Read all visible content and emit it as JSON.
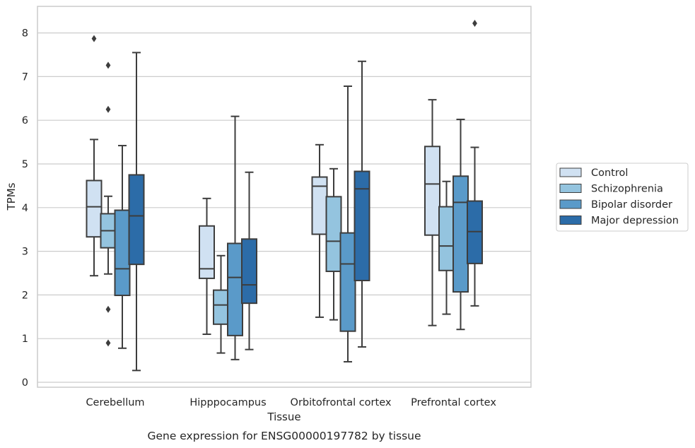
{
  "chart_data": {
    "type": "box",
    "caption": "Gene expression for ENSG00000197782 by tissue",
    "xlabel": "Tissue",
    "ylabel": "TPMs",
    "ylim": [
      -0.1,
      8.6
    ],
    "yticks": [
      0,
      1,
      2,
      3,
      4,
      5,
      6,
      7,
      8
    ],
    "grid": "horizontal",
    "legend_position": "right",
    "categories": [
      "Cerebellum",
      "Hipppocampus",
      "Orbitofrontal cortex",
      "Prefrontal cortex"
    ],
    "series": [
      {
        "name": "Control",
        "color": "#d0e1f2",
        "boxes": [
          {
            "whislo": 2.44,
            "q1": 3.33,
            "med": 4.02,
            "q3": 4.62,
            "whishi": 5.56,
            "fliers": [
              7.87
            ]
          },
          {
            "whislo": 1.1,
            "q1": 2.38,
            "med": 2.6,
            "q3": 3.58,
            "whishi": 4.21,
            "fliers": []
          },
          {
            "whislo": 1.49,
            "q1": 3.39,
            "med": 4.49,
            "q3": 4.7,
            "whishi": 5.44,
            "fliers": []
          },
          {
            "whislo": 1.3,
            "q1": 3.37,
            "med": 4.54,
            "q3": 5.4,
            "whishi": 6.47,
            "fliers": []
          }
        ]
      },
      {
        "name": "Schizophrenia",
        "color": "#94c4df",
        "boxes": [
          {
            "whislo": 2.48,
            "q1": 3.08,
            "med": 3.47,
            "q3": 3.86,
            "whishi": 4.26,
            "fliers": [
              7.26,
              6.25,
              1.67,
              0.9
            ]
          },
          {
            "whislo": 0.67,
            "q1": 1.33,
            "med": 1.77,
            "q3": 2.11,
            "whishi": 2.9,
            "fliers": []
          },
          {
            "whislo": 1.43,
            "q1": 2.54,
            "med": 3.23,
            "q3": 4.25,
            "whishi": 4.89,
            "fliers": []
          },
          {
            "whislo": 1.56,
            "q1": 2.56,
            "med": 3.12,
            "q3": 4.02,
            "whishi": 4.6,
            "fliers": []
          }
        ]
      },
      {
        "name": "Bipolar disorder",
        "color": "#5a9ac9",
        "boxes": [
          {
            "whislo": 0.78,
            "q1": 1.99,
            "med": 2.6,
            "q3": 3.94,
            "whishi": 5.42,
            "fliers": []
          },
          {
            "whislo": 0.52,
            "q1": 1.07,
            "med": 2.4,
            "q3": 3.18,
            "whishi": 6.09,
            "fliers": []
          },
          {
            "whislo": 0.47,
            "q1": 1.17,
            "med": 2.71,
            "q3": 3.42,
            "whishi": 6.78,
            "fliers": []
          },
          {
            "whislo": 1.21,
            "q1": 2.07,
            "med": 4.12,
            "q3": 4.72,
            "whishi": 6.02,
            "fliers": []
          }
        ]
      },
      {
        "name": "Major depression",
        "color": "#2c6ca8",
        "boxes": [
          {
            "whislo": 0.27,
            "q1": 2.7,
            "med": 3.81,
            "q3": 4.75,
            "whishi": 7.55,
            "fliers": []
          },
          {
            "whislo": 0.75,
            "q1": 1.81,
            "med": 2.23,
            "q3": 3.28,
            "whishi": 4.81,
            "fliers": []
          },
          {
            "whislo": 0.81,
            "q1": 2.33,
            "med": 4.43,
            "q3": 4.83,
            "whishi": 7.35,
            "fliers": []
          },
          {
            "whislo": 1.75,
            "q1": 2.72,
            "med": 3.45,
            "q3": 4.15,
            "whishi": 5.38,
            "fliers": [
              8.22
            ]
          }
        ]
      }
    ]
  }
}
